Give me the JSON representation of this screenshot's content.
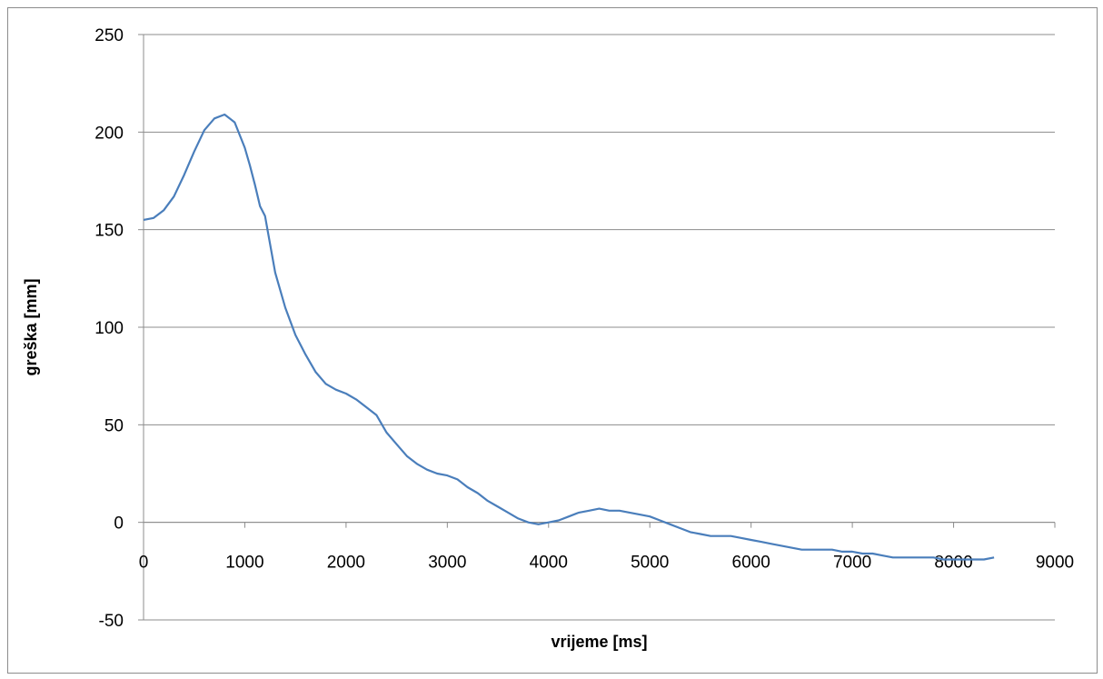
{
  "chart_data": {
    "type": "line",
    "title": "",
    "xlabel": "vrijeme [ms]",
    "ylabel": "greška [mm]",
    "xlim": [
      0,
      9000
    ],
    "ylim": [
      -50,
      250
    ],
    "x_ticks": [
      0,
      1000,
      2000,
      3000,
      4000,
      5000,
      6000,
      7000,
      8000,
      9000
    ],
    "y_ticks": [
      -50,
      0,
      50,
      100,
      150,
      200,
      250
    ],
    "grid": "horizontal",
    "legend": "none",
    "line_color": "#4a7ebb",
    "series": [
      {
        "x": [
          0,
          100,
          200,
          300,
          400,
          500,
          600,
          700,
          800,
          900,
          1000,
          1050,
          1100,
          1150,
          1200,
          1300,
          1400,
          1500,
          1600,
          1700,
          1800,
          1900,
          2000,
          2100,
          2200,
          2300,
          2400,
          2500,
          2600,
          2700,
          2800,
          2900,
          3000,
          3100,
          3200,
          3300,
          3400,
          3500,
          3600,
          3700,
          3800,
          3900,
          4000,
          4100,
          4200,
          4300,
          4400,
          4500,
          4600,
          4700,
          4800,
          4900,
          5000,
          5100,
          5200,
          5300,
          5400,
          5500,
          5600,
          5700,
          5800,
          5900,
          6000,
          6100,
          6200,
          6300,
          6400,
          6500,
          6600,
          6700,
          6800,
          6900,
          7000,
          7100,
          7200,
          7300,
          7400,
          7500,
          7600,
          7700,
          7800,
          7900,
          8000,
          8100,
          8200,
          8300,
          8400
        ],
        "y": [
          155,
          156,
          160,
          167,
          178,
          190,
          201,
          207,
          209,
          205,
          192,
          183,
          173,
          162,
          157,
          128,
          110,
          96,
          86,
          77,
          71,
          68,
          66,
          63,
          59,
          55,
          46,
          40,
          34,
          30,
          27,
          25,
          24,
          22,
          18,
          15,
          11,
          8,
          5,
          2,
          0,
          -1,
          0,
          1,
          3,
          5,
          6,
          7,
          6,
          6,
          5,
          4,
          3,
          1,
          -1,
          -3,
          -5,
          -6,
          -7,
          -7,
          -7,
          -8,
          -9,
          -10,
          -11,
          -12,
          -13,
          -14,
          -14,
          -14,
          -14,
          -15,
          -15,
          -16,
          -16,
          -17,
          -18,
          -18,
          -18,
          -18,
          -18,
          -19,
          -19,
          -19,
          -19,
          -19,
          -18
        ]
      }
    ]
  }
}
